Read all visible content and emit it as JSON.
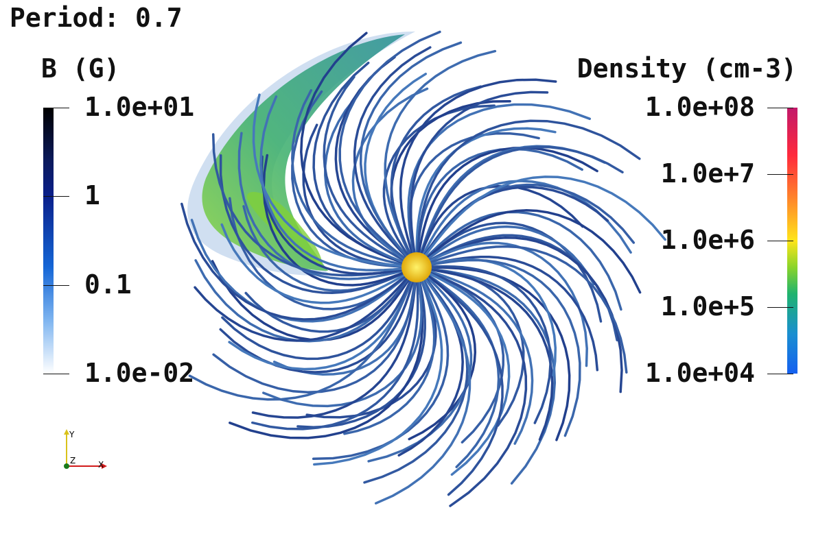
{
  "title": "Period: 0.7",
  "legend_b": {
    "title": "B (G)",
    "ticks": [
      "1.0e+01",
      "1",
      "0.1",
      "1.0e-02"
    ]
  },
  "legend_density": {
    "title": "Density (cm-3)",
    "ticks": [
      "1.0e+08",
      "1.0e+7",
      "1.0e+6",
      "1.0e+5",
      "1.0e+04"
    ]
  },
  "axes_triad": {
    "y": "Y",
    "z": "Z",
    "x": "X"
  },
  "colors": {
    "field_line_dark": "#0a1a6e",
    "field_line_light": "#5a98d4",
    "star": "#f2c21a",
    "plume": "#2aa87a"
  }
}
